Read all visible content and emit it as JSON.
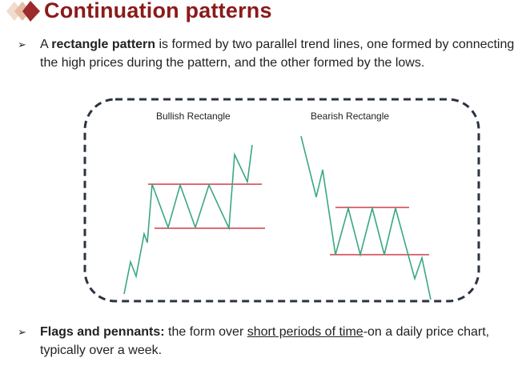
{
  "title": "Continuation patterns",
  "bullet1": {
    "pre": "A ",
    "bold": "rectangle pattern",
    "post": " is formed by two parallel trend lines, one formed by connecting the high prices during the pattern, and the other formed by the lows."
  },
  "figure": {
    "left_label": "Bullish Rectangle",
    "right_label": "Bearish Rectangle",
    "colors": {
      "price_line": "#3aa882",
      "trend_line": "#d23c4b",
      "border": "#2b3340"
    }
  },
  "bullet2": {
    "bold": "Flags and pennants:",
    "mid": " the form over ",
    "underlined": "short periods of time",
    "post": "-on a daily price chart, typically over a week."
  },
  "colors": {
    "title": "#8b1a1a",
    "diamond_dark": "#9c2a2a",
    "diamond_light": "#e8c9b6"
  }
}
